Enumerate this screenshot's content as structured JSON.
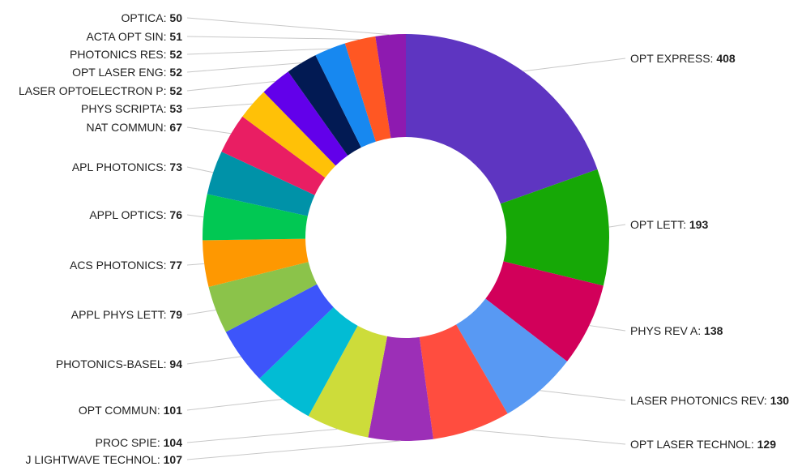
{
  "chart_data": {
    "type": "pie",
    "variant": "donut",
    "title": "",
    "start_angle_deg": 0,
    "direction": "clockwise",
    "legend": "none",
    "slices": [
      {
        "label": "OPT EXPRESS",
        "value": 408,
        "color": "#5e35c1"
      },
      {
        "label": "OPT LETT",
        "value": 193,
        "color": "#16a806"
      },
      {
        "label": "PHYS REV A",
        "value": 138,
        "color": "#d2005a"
      },
      {
        "label": "LASER PHOTONICS REV",
        "value": 130,
        "color": "#5899f3"
      },
      {
        "label": "OPT LASER TECHNOL",
        "value": 129,
        "color": "#ff4d3f"
      },
      {
        "label": "J LIGHTWAVE TECHNOL",
        "value": 107,
        "color": "#9c2fb7"
      },
      {
        "label": "PROC SPIE",
        "value": 104,
        "color": "#cddc3a"
      },
      {
        "label": "OPT COMMUN",
        "value": 101,
        "color": "#02bcd4"
      },
      {
        "label": "PHOTONICS-BASEL",
        "value": 94,
        "color": "#3d55fa"
      },
      {
        "label": "APPL PHYS LETT",
        "value": 79,
        "color": "#8bc34a"
      },
      {
        "label": "ACS PHOTONICS",
        "value": 77,
        "color": "#fe9801"
      },
      {
        "label": "APPL OPTICS",
        "value": 76,
        "color": "#01c853"
      },
      {
        "label": "APL PHOTONICS",
        "value": 73,
        "color": "#0092a8"
      },
      {
        "label": "NAT COMMUN",
        "value": 67,
        "color": "#e91e63"
      },
      {
        "label": "PHYS SCRIPTA",
        "value": 53,
        "color": "#ffc107"
      },
      {
        "label": "LASER OPTOELECTRON P",
        "value": 52,
        "color": "#6200ea"
      },
      {
        "label": "OPT LASER ENG",
        "value": 52,
        "color": "#021a53"
      },
      {
        "label": "PHOTONICS RES",
        "value": 52,
        "color": "#1788f0"
      },
      {
        "label": "ACTA OPT SIN",
        "value": 51,
        "color": "#ff5723"
      },
      {
        "label": "OPTICA",
        "value": 50,
        "color": "#8e1ab0"
      }
    ]
  }
}
